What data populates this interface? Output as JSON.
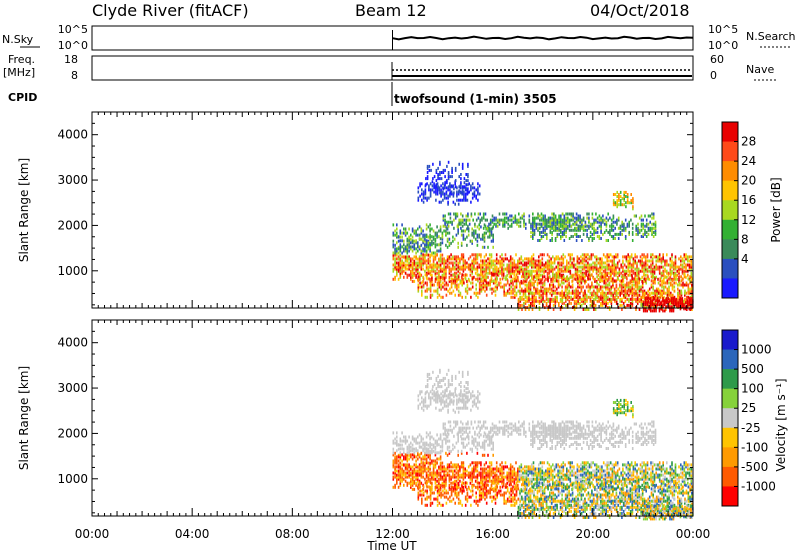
{
  "header": {
    "station": "Clyde River (fitACF)",
    "beam": "Beam 12",
    "date": "04/Oct/2018"
  },
  "noise_panel": {
    "left_label": "N.Sky",
    "right_label": "N.Search",
    "left_ticks": [
      "10^5",
      "10^0"
    ],
    "right_ticks": [
      "10^5",
      "10^0"
    ]
  },
  "freq_panel": {
    "left_label_1": "Freq.",
    "left_label_2": "[MHz]",
    "right_label": "Nave",
    "left_ticks": [
      "18",
      "8"
    ],
    "right_ticks": [
      "60",
      "0"
    ]
  },
  "cpid": {
    "label": "CPID",
    "program": "twofsound (1-min) 3505"
  },
  "colors": {
    "power": [
      "#1a1aff",
      "#2a4fbf",
      "#3a8a5a",
      "#33b033",
      "#a8d820",
      "#ffc400",
      "#ff8c00",
      "#ff4a1a",
      "#e80000"
    ],
    "velocity": [
      "#ff0000",
      "#ff5a00",
      "#ff9a00",
      "#ffc400",
      "#c8c8c8",
      "#86d23a",
      "#2e9a4a",
      "#2b66bb",
      "#1a1acc"
    ]
  },
  "chart_data": [
    {
      "type": "heatmap",
      "title": "Power",
      "xlabel": "",
      "ylabel": "Slant Range [km]",
      "xlim": [
        "00:00",
        "00:00"
      ],
      "ylim": [
        180,
        4500
      ],
      "x_ticks": [
        "00:00",
        "04:00",
        "08:00",
        "12:00",
        "16:00",
        "20:00",
        "00:00"
      ],
      "y_ticks": [
        1000,
        2000,
        3000,
        4000
      ],
      "colorbar": {
        "label": "Power [dB]",
        "ticks": [
          "4",
          "8",
          "12",
          "16",
          "20",
          "24",
          "28"
        ]
      },
      "data_start": "12:00"
    },
    {
      "type": "heatmap",
      "title": "Velocity",
      "xlabel": "Time UT",
      "ylabel": "Slant Range [km]",
      "xlim": [
        "00:00",
        "00:00"
      ],
      "ylim": [
        180,
        4500
      ],
      "x_ticks": [
        "00:00",
        "04:00",
        "08:00",
        "12:00",
        "16:00",
        "20:00",
        "00:00"
      ],
      "y_ticks": [
        1000,
        2000,
        3000,
        4000
      ],
      "colorbar": {
        "label": "Velocity [m s⁻¹]",
        "ticks": [
          "1000",
          "500",
          "100",
          "25",
          "-25",
          "-100",
          "-500",
          "-1000"
        ]
      },
      "data_start": "12:00"
    }
  ]
}
